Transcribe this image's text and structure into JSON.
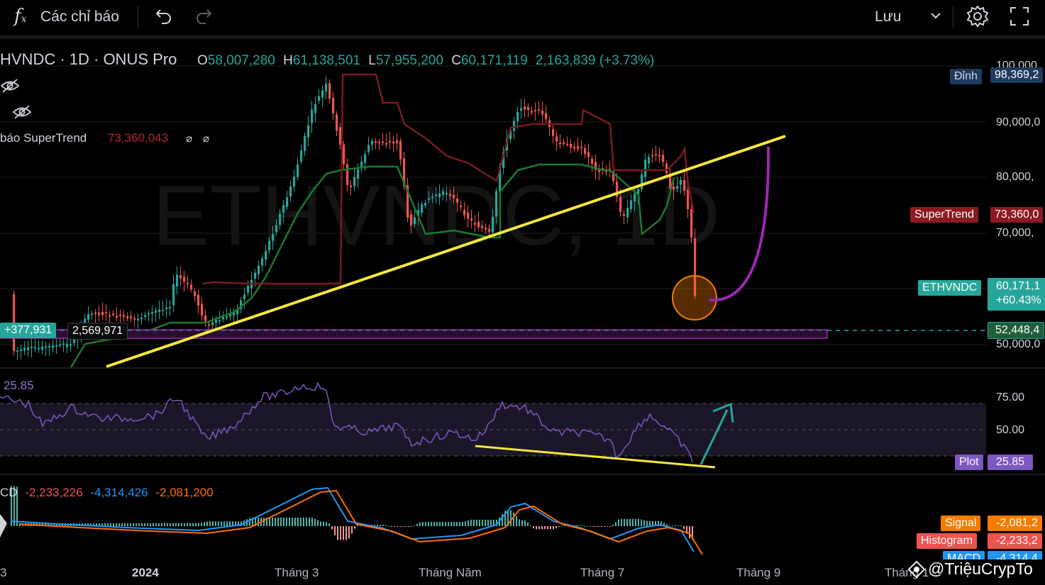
{
  "toolbar": {
    "indicators_label": "Các chỉ báo",
    "save_label": "Lưu"
  },
  "legend": {
    "symbol": "HVNDC · 1D · ONUS Pro",
    "o_prefix": "O",
    "o_value": "58,007,280",
    "h_prefix": "H",
    "h_value": "61,138,501",
    "l_prefix": "L",
    "l_value": "57,955,200",
    "c_prefix": "C",
    "c_value": "60,171,119",
    "change": "2,163,839 (+3.73%)",
    "supertrend_label": "báo SuperTrend",
    "supertrend_value": "73,360,043"
  },
  "price_axis": {
    "labels": [
      "100,000",
      "90,000,0",
      "80,000,",
      "70,000,",
      "50,000,0"
    ],
    "dinh_tag": "Đỉnh",
    "dinh_value": "98,369,2",
    "supertrend_tag": "SuperTrend",
    "supertrend_value": "73,360,0",
    "symbol_tag": "ETHVNDC",
    "price_value": "60,171,1",
    "price_change": "+60.43%",
    "line_value": "52,448,4"
  },
  "left_tags": {
    "diff_green": "+377,931",
    "diff_dark": "2,569,971"
  },
  "rsi": {
    "value": "25.85",
    "axis_labels": [
      "75.00",
      "50.00"
    ],
    "plot_tag": "Plot",
    "plot_value": "25.85"
  },
  "macd": {
    "label": "CD",
    "v1": "-2,233,226",
    "v2": "-4,314,426",
    "v3": "-2,081,200",
    "signal_tag": "Signal",
    "signal_value": "-2,081,2",
    "hist_tag": "Histogram",
    "hist_value": "-2,233,2",
    "macd_tag": "MACD",
    "macd_value": "-4,314,4"
  },
  "time_axis": {
    "labels": [
      "3",
      "2024",
      "Tháng 3",
      "Tháng Năm",
      "Tháng 7",
      "Tháng 9",
      "Tháng 1"
    ]
  },
  "watermark": {
    "symbol": "ETHVNDC, 1D",
    "credit": "@TriệuCrypTo"
  },
  "colors": {
    "up": "#26a69a",
    "down": "#ef5350",
    "trendline": "#f5e63a",
    "curve": "#9c27b0",
    "rsi": "#7e57c2"
  }
}
